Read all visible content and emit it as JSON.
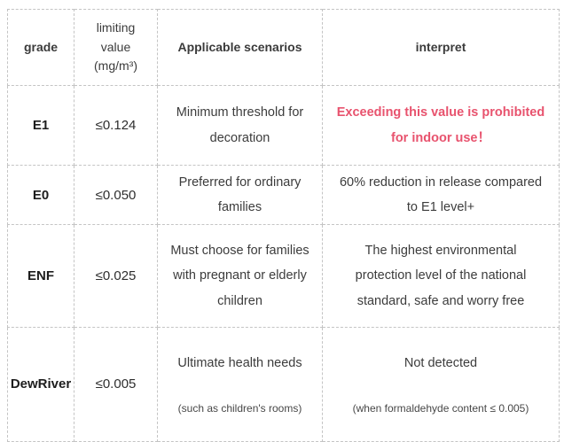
{
  "colors": {
    "alert_text": "#e8536e",
    "border": "#c4c4c4",
    "header_text": "#3b3b3b",
    "body_text": "#3c3c3c"
  },
  "table": {
    "headers": [
      {
        "label": "grade"
      },
      {
        "label": "limiting\nvalue\n(mg/m³)"
      },
      {
        "label": "Applicable scenarios"
      },
      {
        "label": "interpret"
      }
    ],
    "rows": [
      {
        "grade": "E1",
        "limit": "≤0.124",
        "scenario": "Minimum threshold for\ndecoration",
        "interpret": "Exceeding this value is prohibited\nfor indoor use！"
      },
      {
        "grade": "E0",
        "limit": "≤0.050",
        "scenario": "Preferred for ordinary\nfamilies",
        "interpret": "60% reduction in release compared\nto E1 level+"
      },
      {
        "grade": "ENF",
        "limit": "≤0.025",
        "scenario": "Must choose for families\nwith pregnant or elderly\nchildren",
        "interpret": "The highest environmental\nprotection level of the national\nstandard, safe and worry free"
      },
      {
        "grade": "DewRiver",
        "limit": "≤0.005",
        "scenario": "Ultimate health needs",
        "scenario_note": "(such as children's rooms)",
        "interpret": "Not detected",
        "interpret_note": "(when formaldehyde content ≤ 0.005)"
      }
    ]
  }
}
